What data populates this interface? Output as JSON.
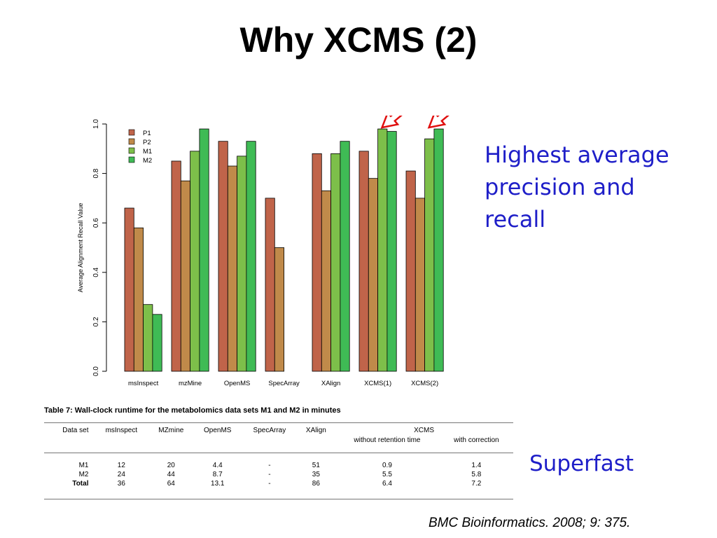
{
  "slide": {
    "title": "Why XCMS (2)",
    "callout_lines": [
      "Highest average",
      "precision and",
      "recall"
    ],
    "superfast": "Superfast",
    "citation": "BMC Bioinformatics. 2008; 9: 375."
  },
  "chart_data": {
    "type": "bar",
    "ylabel": "Average Alignment Recall Value",
    "ylim": [
      0,
      1
    ],
    "yticks": [
      "0.0",
      "0.2",
      "0.4",
      "0.6",
      "0.8",
      "1.0"
    ],
    "categories": [
      "msInspect",
      "mzMine",
      "OpenMS",
      "SpecArray",
      "XAlign",
      "XCMS(1)",
      "XCMS(2)"
    ],
    "series": [
      {
        "name": "P1",
        "color": "#c0644a",
        "values": [
          0.66,
          0.85,
          0.93,
          0.7,
          0.88,
          0.89,
          0.81
        ]
      },
      {
        "name": "P2",
        "color": "#c08a4a",
        "values": [
          0.58,
          0.77,
          0.83,
          0.5,
          0.73,
          0.78,
          0.7
        ]
      },
      {
        "name": "M1",
        "color": "#7dbf4a",
        "values": [
          0.27,
          0.89,
          0.87,
          null,
          0.88,
          0.98,
          0.94
        ]
      },
      {
        "name": "M2",
        "color": "#3fbb55",
        "values": [
          0.23,
          0.98,
          0.93,
          null,
          0.93,
          0.97,
          0.98
        ]
      }
    ],
    "grid": false,
    "legend": "top-left",
    "highlighted_categories": [
      "XCMS(1)",
      "XCMS(2)"
    ]
  },
  "table": {
    "caption": "Table 7: Wall-clock runtime for the metabolomics data sets M1 and M2 in minutes",
    "headers": [
      "Data set",
      "msInspect",
      "MZmine",
      "OpenMS",
      "SpecArray",
      "XAlign",
      "XCMS"
    ],
    "xcms_subheaders": [
      "without retention time",
      "with correction"
    ],
    "rows": [
      {
        "label": "M1",
        "values": [
          "12",
          "20",
          "4.4",
          "-",
          "51",
          "0.9",
          "1.4"
        ]
      },
      {
        "label": "M2",
        "values": [
          "24",
          "44",
          "8.7",
          "-",
          "35",
          "5.5",
          "5.8"
        ]
      },
      {
        "label": "Total",
        "values": [
          "36",
          "64",
          "13.1",
          "-",
          "86",
          "6.4",
          "7.2"
        ]
      }
    ]
  }
}
